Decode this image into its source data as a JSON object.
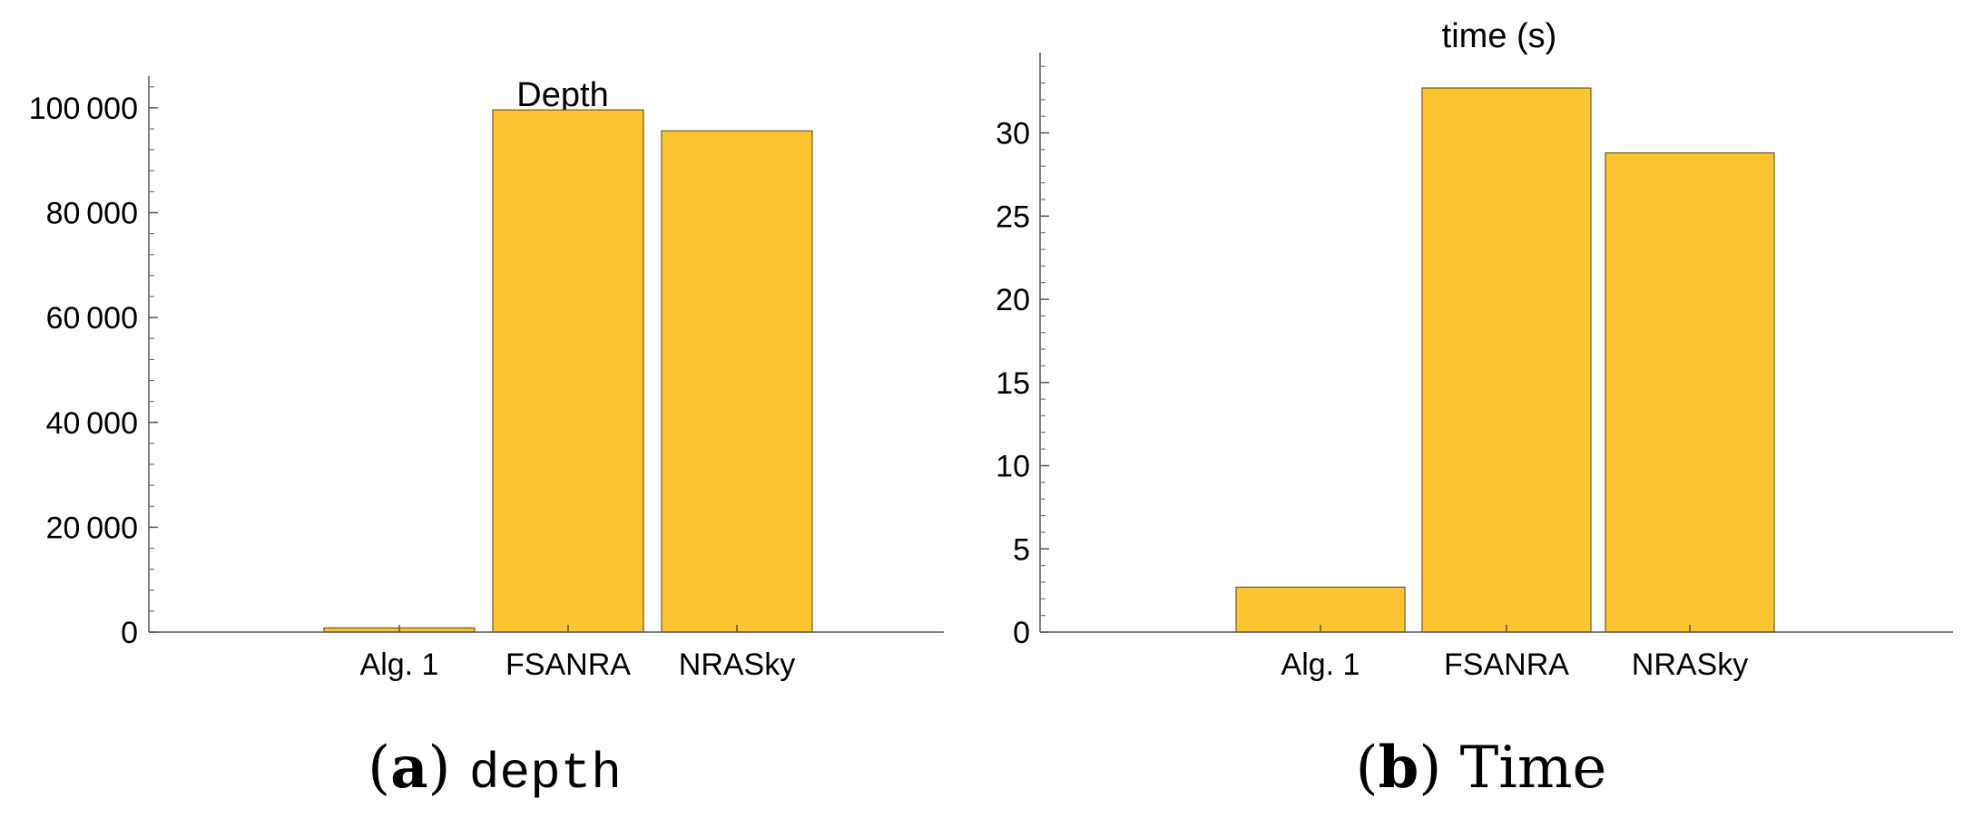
{
  "chart_data": [
    {
      "type": "bar",
      "title": "Depth",
      "categories": [
        "Alg. 1",
        "FSANRA",
        "NRASky"
      ],
      "values": [
        800,
        99600,
        95600
      ],
      "ylim": [
        0,
        105000
      ],
      "yticks": [
        0,
        20000,
        40000,
        60000,
        80000,
        100000
      ],
      "ytick_labels": [
        "0",
        "20 000",
        "40 000",
        "60 000",
        "80 000",
        "100 000"
      ],
      "bar_color": "#FDC431",
      "caption": {
        "letter": "a",
        "text": "depth"
      }
    },
    {
      "type": "bar",
      "title": "time (s)",
      "categories": [
        "Alg. 1",
        "FSANRA",
        "NRASky"
      ],
      "values": [
        2.7,
        32.7,
        28.8
      ],
      "ylim": [
        0,
        34.5
      ],
      "yticks": [
        0,
        5,
        10,
        15,
        20,
        25,
        30
      ],
      "ytick_labels": [
        "0",
        "5",
        "10",
        "15",
        "20",
        "25",
        "30"
      ],
      "bar_color": "#FDC431",
      "caption": {
        "letter": "b",
        "text": "Time"
      }
    }
  ]
}
